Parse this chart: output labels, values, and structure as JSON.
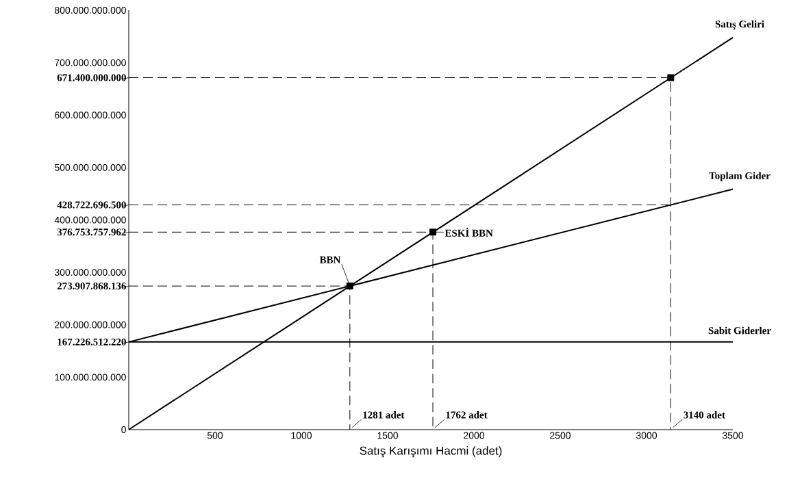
{
  "chart_data": {
    "type": "line",
    "xlabel": "Satış Karışımı Hacmi (adet)",
    "xlim": [
      0,
      3500
    ],
    "ylim": [
      0,
      800000000000
    ],
    "xticks": [
      500,
      1000,
      1500,
      2000,
      2500,
      3000,
      3500
    ],
    "yticks": [
      {
        "value": 0,
        "label": "0"
      },
      {
        "value": 100000000000,
        "label": "100.000.000.000"
      },
      {
        "value": 167226512220,
        "label": "167.226.512.220"
      },
      {
        "value": 200000000000,
        "label": "200.000.000.000"
      },
      {
        "value": 273907868136,
        "label": "273.907.868.136"
      },
      {
        "value": 300000000000,
        "label": "300.000.000.000"
      },
      {
        "value": 376753757962,
        "label": "376.753.757.962"
      },
      {
        "value": 400000000000,
        "label": "400.000.000.000"
      },
      {
        "value": 428722696500,
        "label": "428.722.696.500"
      },
      {
        "value": 500000000000,
        "label": "500.000.000.000"
      },
      {
        "value": 600000000000,
        "label": "600.000.000.000"
      },
      {
        "value": 671400000000,
        "label": "671.400.000.000"
      },
      {
        "value": 700000000000,
        "label": "700.000.000.000"
      },
      {
        "value": 800000000000,
        "label": "800.000.000.000"
      }
    ],
    "grid": false,
    "legend": false,
    "marker": "none",
    "series": [
      {
        "name": "Satış Geliri",
        "color": "#000000",
        "x": [
          0,
          3500
        ],
        "values": [
          0,
          748000000000
        ]
      },
      {
        "name": "Toplam Gider",
        "color": "#000000",
        "x": [
          0,
          3500
        ],
        "values": [
          167226512220,
          458600000000
        ]
      },
      {
        "name": "Sabit Giderler",
        "color": "#000000",
        "x": [
          0,
          3500
        ],
        "values": [
          167226512220,
          167226512220
        ]
      },
      {
        "color": "#000000",
        "line_style": "dashed",
        "x": [
          0,
          3140,
          3140
        ],
        "values": [
          671400000000,
          671400000000,
          0
        ]
      },
      {
        "color": "#000000",
        "line_style": "dashed",
        "x": [
          0,
          3140
        ],
        "values": [
          428722696500,
          428722696500
        ]
      },
      {
        "color": "#000000",
        "line_style": "dashed",
        "x": [
          0,
          1762,
          1762
        ],
        "values": [
          376753757962,
          376753757962,
          0
        ]
      },
      {
        "color": "#000000",
        "line_style": "dashed",
        "x": [
          0,
          1281,
          1281
        ],
        "values": [
          273907868136,
          273907868136,
          0
        ]
      },
      {
        "type": "scatter",
        "color": "#000000",
        "marker": "square",
        "x": [
          1281,
          1762,
          3140
        ],
        "values": [
          273907868136,
          376753757962,
          671400000000
        ]
      }
    ],
    "annotations": [
      {
        "text": "BBN",
        "x": 1281,
        "y": 273907868136
      },
      {
        "text": "ESKİ BBN",
        "x": 1762,
        "y": 376753757962
      },
      {
        "text": "1281 adet",
        "x": 1281,
        "y": 0
      },
      {
        "text": "1762 adet",
        "x": 1762,
        "y": 0
      },
      {
        "text": "3140 adet",
        "x": 3140,
        "y": 0
      }
    ]
  }
}
